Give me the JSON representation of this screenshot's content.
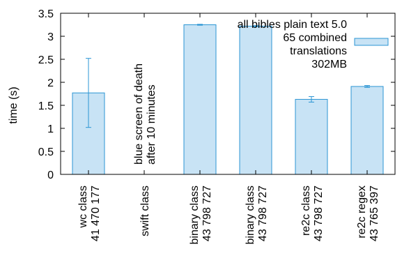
{
  "chart_data": {
    "type": "bar",
    "ylabel": "time (s)",
    "ylim": [
      0,
      3.5
    ],
    "yticks": [
      "0",
      "0.5",
      "1",
      "1.5",
      "2",
      "2.5",
      "3",
      "3.5"
    ],
    "categories": [
      [
        "wc class",
        "41 470 177"
      ],
      [
        "swift class"
      ],
      [
        "binary class",
        "43 798 727"
      ],
      [
        "binary class",
        "43 798 727"
      ],
      [
        "re2c class",
        "43 798 727"
      ],
      [
        "re2c regex",
        "43 765 397"
      ]
    ],
    "values": [
      1.77,
      null,
      3.25,
      3.22,
      1.63,
      1.91
    ],
    "error_low": [
      1.02,
      null,
      3.24,
      3.21,
      1.57,
      1.89
    ],
    "error_high": [
      2.52,
      null,
      3.26,
      3.23,
      1.69,
      1.93
    ],
    "annotations": [
      {
        "category_index": 1,
        "lines": [
          "blue screen of death",
          "after 10 minutes"
        ]
      }
    ],
    "legend": {
      "position": "top-right",
      "lines": [
        "all bibles plain text 5.0",
        "65 combined",
        "translations",
        "302MB"
      ]
    },
    "colors": {
      "bar_fill": "#c8e3f5",
      "bar_stroke": "#2b95d4"
    }
  }
}
